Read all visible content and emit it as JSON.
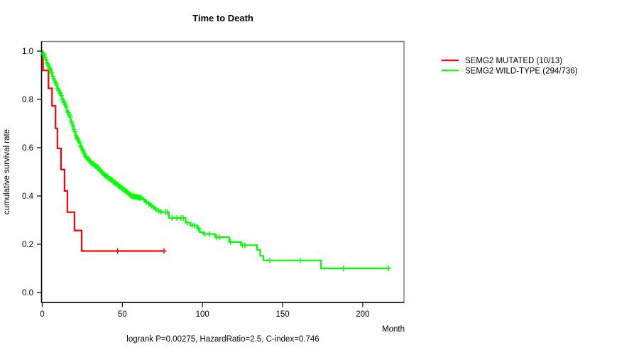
{
  "figure": {
    "background": "#ffffff",
    "axis_color": "#000000",
    "box_color": "#808080",
    "text_color": "#000000"
  },
  "chart_data": {
    "type": "line",
    "subtype": "kaplan-meier-step-curve",
    "title": "Time to Death",
    "xlabel": "Month",
    "ylabel": "cumulative survival rate",
    "annotation": "logrank P=0.00275, HazardRatio=2.5, C-index=0.746",
    "x_ticks": [
      0,
      50,
      100,
      150,
      200
    ],
    "y_ticks": [
      "1.0",
      "0.8",
      "0.6",
      "0.4",
      "0.2",
      "0.0"
    ],
    "xlim": [
      0,
      225
    ],
    "ylim": [
      0,
      1.04
    ],
    "grid": false,
    "legend_position": "outside-right-top",
    "series": [
      {
        "name": "SEMG2 MUTATED (10/13)",
        "color": "#ff0000",
        "steps": [
          [
            0,
            1.0
          ],
          [
            0.5,
            0.92
          ],
          [
            3.9,
            0.846
          ],
          [
            6.1,
            0.773
          ],
          [
            8.3,
            0.68
          ],
          [
            9.5,
            0.597
          ],
          [
            11.7,
            0.509
          ],
          [
            13.9,
            0.421
          ],
          [
            15.7,
            0.333
          ],
          [
            20.1,
            0.257
          ],
          [
            24.6,
            0.172
          ]
        ],
        "end_month": 76,
        "censor_months": [
          47,
          76
        ]
      },
      {
        "name": "SEMG2 WILD-TYPE (294/736)",
        "color": "#00ff00",
        "steps": [
          [
            0,
            1.0
          ],
          [
            0.5,
            0.99
          ],
          [
            1,
            0.985
          ],
          [
            1.5,
            0.975
          ],
          [
            2,
            0.965
          ],
          [
            2.5,
            0.958
          ],
          [
            3,
            0.95
          ],
          [
            3.5,
            0.943
          ],
          [
            4,
            0.935
          ],
          [
            4.5,
            0.928
          ],
          [
            5,
            0.92
          ],
          [
            5.5,
            0.91
          ],
          [
            6,
            0.902
          ],
          [
            6.5,
            0.895
          ],
          [
            7,
            0.885
          ],
          [
            7.5,
            0.876
          ],
          [
            8,
            0.868
          ],
          [
            8.5,
            0.86
          ],
          [
            9,
            0.853
          ],
          [
            9.5,
            0.845
          ],
          [
            10,
            0.838
          ],
          [
            10.5,
            0.83
          ],
          [
            11,
            0.824
          ],
          [
            11.5,
            0.816
          ],
          [
            12,
            0.809
          ],
          [
            12.5,
            0.8
          ],
          [
            13,
            0.794
          ],
          [
            13.5,
            0.786
          ],
          [
            14,
            0.777
          ],
          [
            14.5,
            0.769
          ],
          [
            15,
            0.761
          ],
          [
            15.5,
            0.752
          ],
          [
            16,
            0.745
          ],
          [
            16.5,
            0.736
          ],
          [
            17,
            0.729
          ],
          [
            17.5,
            0.719
          ],
          [
            18,
            0.71
          ],
          [
            18.5,
            0.7
          ],
          [
            19,
            0.69
          ],
          [
            19.5,
            0.676
          ],
          [
            20,
            0.666
          ],
          [
            20.5,
            0.657
          ],
          [
            21,
            0.649
          ],
          [
            21.5,
            0.642
          ],
          [
            22,
            0.635
          ],
          [
            22.5,
            0.627
          ],
          [
            23,
            0.62
          ],
          [
            23.5,
            0.612
          ],
          [
            24,
            0.605
          ],
          [
            24.5,
            0.597
          ],
          [
            25,
            0.59
          ],
          [
            25.5,
            0.582
          ],
          [
            26,
            0.575
          ],
          [
            26.5,
            0.57
          ],
          [
            27,
            0.564
          ],
          [
            27.5,
            0.559
          ],
          [
            28,
            0.555
          ],
          [
            29,
            0.547
          ],
          [
            30,
            0.54
          ],
          [
            31,
            0.534
          ],
          [
            32,
            0.529
          ],
          [
            33,
            0.524
          ],
          [
            34,
            0.519
          ],
          [
            35,
            0.512
          ],
          [
            36,
            0.505
          ],
          [
            37,
            0.497
          ],
          [
            38,
            0.49
          ],
          [
            39,
            0.485
          ],
          [
            40,
            0.48
          ],
          [
            41,
            0.475
          ],
          [
            42,
            0.47
          ],
          [
            43,
            0.465
          ],
          [
            44,
            0.459
          ],
          [
            45,
            0.454
          ],
          [
            46,
            0.449
          ],
          [
            47,
            0.444
          ],
          [
            48,
            0.439
          ],
          [
            49,
            0.434
          ],
          [
            50,
            0.429
          ],
          [
            51,
            0.424
          ],
          [
            52,
            0.419
          ],
          [
            53,
            0.414
          ],
          [
            54,
            0.408
          ],
          [
            55,
            0.401
          ],
          [
            56,
            0.398
          ],
          [
            58,
            0.396
          ],
          [
            60,
            0.393
          ],
          [
            62,
            0.389
          ],
          [
            63,
            0.385
          ],
          [
            64,
            0.379
          ],
          [
            65,
            0.374
          ],
          [
            66,
            0.369
          ],
          [
            67,
            0.364
          ],
          [
            68,
            0.359
          ],
          [
            69,
            0.354
          ],
          [
            70,
            0.349
          ],
          [
            71,
            0.344
          ],
          [
            72,
            0.339
          ],
          [
            73,
            0.336
          ],
          [
            74,
            0.334
          ],
          [
            75,
            0.333
          ],
          [
            79,
            0.309
          ],
          [
            89.5,
            0.289
          ],
          [
            92.5,
            0.278
          ],
          [
            96.8,
            0.265
          ],
          [
            98.3,
            0.25
          ],
          [
            100.5,
            0.242
          ],
          [
            108,
            0.229
          ],
          [
            116.7,
            0.209
          ],
          [
            124,
            0.196
          ],
          [
            134,
            0.177
          ],
          [
            136,
            0.152
          ],
          [
            138,
            0.133
          ],
          [
            174,
            0.1
          ]
        ],
        "end_month": 217,
        "censor_band": {
          "from": 0.6,
          "to": 62,
          "step": 0.6
        },
        "censor_months": [
          63.5,
          65,
          66.5,
          68,
          69.5,
          71,
          72.5,
          74,
          76.9,
          78,
          81,
          84,
          86.5,
          88,
          90.5,
          93.5,
          95,
          97.5,
          101.5,
          104.5,
          108.8,
          110.5,
          117.5,
          125,
          126.5,
          142,
          161,
          188,
          216
        ]
      }
    ]
  }
}
